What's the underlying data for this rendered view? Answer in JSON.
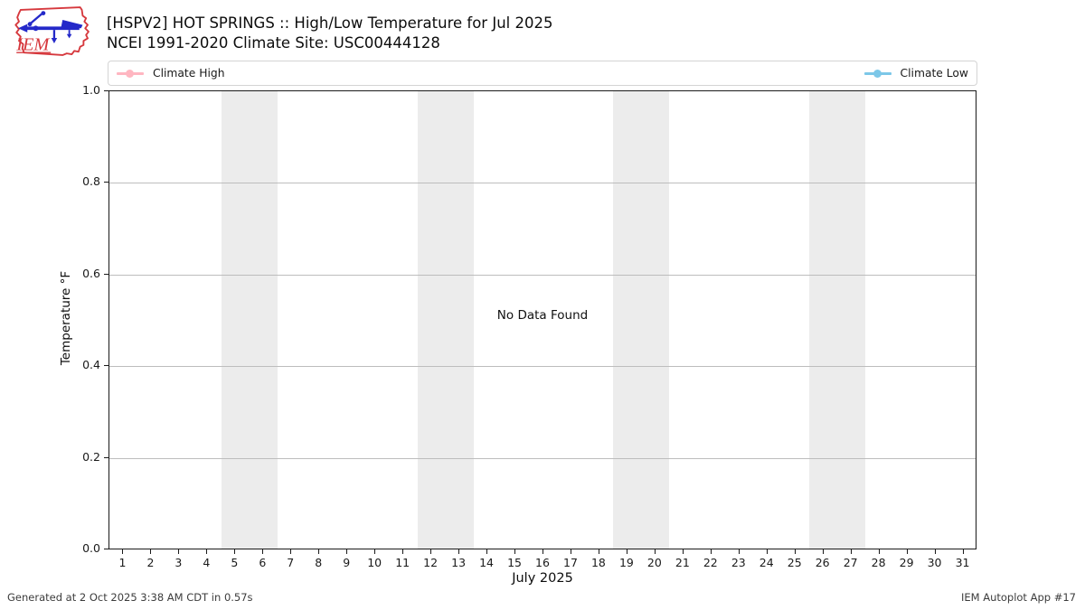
{
  "header": {
    "logo_text": "IEM",
    "title_line1": "[HSPV2] HOT SPRINGS :: High/Low Temperature for Jul 2025",
    "title_line2": "NCEI 1991-2020 Climate Site: USC00444128"
  },
  "legend": {
    "items": [
      {
        "label": "Climate High",
        "color": "#ffb6c1"
      },
      {
        "label": "Climate Low",
        "color": "#7cc7e8"
      }
    ]
  },
  "chart_data": {
    "type": "line",
    "title": "[HSPV2] HOT SPRINGS :: High/Low Temperature for Jul 2025",
    "subtitle": "NCEI 1991-2020 Climate Site: USC00444128",
    "xlabel": "July 2025",
    "ylabel": "Temperature °F",
    "annotation": "No Data Found",
    "xlim": [
      0.5,
      31.5
    ],
    "ylim": [
      0.0,
      1.0
    ],
    "xticks": [
      1,
      2,
      3,
      4,
      5,
      6,
      7,
      8,
      9,
      10,
      11,
      12,
      13,
      14,
      15,
      16,
      17,
      18,
      19,
      20,
      21,
      22,
      23,
      24,
      25,
      26,
      27,
      28,
      29,
      30,
      31
    ],
    "yticks": [
      0.0,
      0.2,
      0.4,
      0.6,
      0.8,
      1.0
    ],
    "ytick_labels": [
      "0.0",
      "0.2",
      "0.4",
      "0.6",
      "0.8",
      "1.0"
    ],
    "grid": "horizontal",
    "legend_position": "top",
    "series": [
      {
        "name": "Climate High",
        "color": "#ffb6c1",
        "values": []
      },
      {
        "name": "Climate Low",
        "color": "#7cc7e8",
        "values": []
      }
    ],
    "weekend_bands": [
      [
        4.5,
        6.5
      ],
      [
        11.5,
        13.5
      ],
      [
        18.5,
        20.5
      ],
      [
        25.5,
        27.5
      ]
    ],
    "band_color": "#ececec"
  },
  "footer": {
    "left": "Generated at 2 Oct 2025 3:38 AM CDT in 0.57s",
    "right": "IEM Autoplot App #17"
  }
}
